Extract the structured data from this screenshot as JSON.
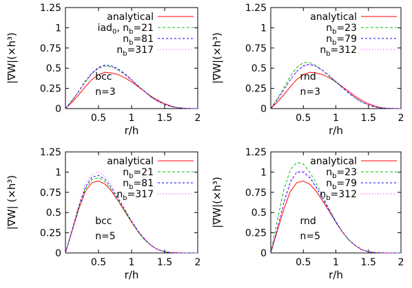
{
  "chart_data": [
    {
      "type": "line",
      "panel": "bcc-n3",
      "xlabel": "r/h",
      "ylabel": "|∇W|(×h³)",
      "xlim": [
        0,
        2
      ],
      "ylim": [
        0,
        1.25
      ],
      "xticks": [
        "0.5",
        "1",
        "1.5",
        "2"
      ],
      "yticks": [
        "0",
        "0.25",
        "0.5",
        "0.75",
        "1",
        "1.25"
      ],
      "annotation": [
        "bcc",
        "n=3"
      ],
      "legend_position": "top-right",
      "series": [
        {
          "name": "analytical",
          "base": "analytical",
          "sub": "",
          "rest": "",
          "color": "#ff0000",
          "dash": "none",
          "x": [
            0,
            0.1,
            0.2,
            0.3,
            0.4,
            0.5,
            0.6,
            0.7,
            0.8,
            0.9,
            1.0,
            1.1,
            1.2,
            1.3,
            1.4,
            1.5,
            1.6,
            1.7,
            1.8,
            1.9,
            2.0
          ],
          "values": [
            0,
            0.08,
            0.17,
            0.27,
            0.36,
            0.42,
            0.45,
            0.44,
            0.42,
            0.38,
            0.33,
            0.27,
            0.21,
            0.15,
            0.1,
            0.06,
            0.03,
            0.01,
            0.004,
            0.001,
            0
          ]
        },
        {
          "name": "iad0, nb=21",
          "base": "iad",
          "sub": "0",
          "rest": ", n",
          "sub2": "b",
          "rest2": "=21",
          "color": "#00c000",
          "dash": "4,3",
          "x": [
            0,
            0.1,
            0.2,
            0.3,
            0.4,
            0.5,
            0.6,
            0.7,
            0.8,
            0.9,
            1.0,
            1.1,
            1.2,
            1.3,
            1.4,
            1.5,
            1.6,
            1.7,
            1.8,
            1.9,
            2.0
          ],
          "values": [
            0,
            0.1,
            0.21,
            0.33,
            0.43,
            0.5,
            0.53,
            0.52,
            0.48,
            0.42,
            0.35,
            0.28,
            0.21,
            0.14,
            0.09,
            0.05,
            0.025,
            0.01,
            0.003,
            0.001,
            0
          ]
        },
        {
          "name": "nb=81",
          "base": "n",
          "sub": "b",
          "rest": "=81",
          "color": "#0000ff",
          "dash": "3,3",
          "x": [
            0,
            0.1,
            0.2,
            0.3,
            0.4,
            0.5,
            0.6,
            0.7,
            0.8,
            0.9,
            1.0,
            1.1,
            1.2,
            1.3,
            1.4,
            1.5,
            1.6,
            1.7,
            1.8,
            1.9,
            2.0
          ],
          "values": [
            0,
            0.1,
            0.21,
            0.34,
            0.44,
            0.51,
            0.54,
            0.53,
            0.49,
            0.43,
            0.36,
            0.28,
            0.21,
            0.14,
            0.09,
            0.05,
            0.025,
            0.01,
            0.003,
            0.001,
            0
          ]
        },
        {
          "name": "nb=317",
          "base": "n",
          "sub": "b",
          "rest": "=317",
          "color": "#ff00ff",
          "dash": "1,3",
          "x": [
            0,
            0.1,
            0.2,
            0.3,
            0.4,
            0.5,
            0.6,
            0.7,
            0.8,
            0.9,
            1.0,
            1.1,
            1.2,
            1.3,
            1.4,
            1.5,
            1.6,
            1.7,
            1.8,
            1.9,
            2.0
          ],
          "values": [
            0,
            0.1,
            0.21,
            0.33,
            0.43,
            0.5,
            0.52,
            0.51,
            0.47,
            0.42,
            0.35,
            0.28,
            0.21,
            0.14,
            0.09,
            0.05,
            0.025,
            0.01,
            0.003,
            0.001,
            0
          ]
        }
      ]
    },
    {
      "type": "line",
      "panel": "rnd-n3",
      "xlabel": "r/h",
      "ylabel": "|∇W|(×h³)",
      "xlim": [
        0,
        2
      ],
      "ylim": [
        0,
        1.25
      ],
      "xticks": [
        "0.5",
        "1",
        "1.5",
        "2"
      ],
      "yticks": [
        "0",
        "0.25",
        "0.5",
        "0.75",
        "1",
        "1.25"
      ],
      "annotation": [
        "rnd",
        "n=3"
      ],
      "legend_position": "top-right",
      "series": [
        {
          "name": "analytical",
          "base": "analytical",
          "sub": "",
          "rest": "",
          "color": "#ff0000",
          "dash": "none",
          "x": [
            0,
            0.1,
            0.2,
            0.3,
            0.4,
            0.5,
            0.6,
            0.7,
            0.8,
            0.9,
            1.0,
            1.1,
            1.2,
            1.3,
            1.4,
            1.5,
            1.6,
            1.7,
            1.8,
            1.9,
            2.0
          ],
          "values": [
            0,
            0.08,
            0.17,
            0.27,
            0.36,
            0.42,
            0.45,
            0.44,
            0.42,
            0.38,
            0.33,
            0.27,
            0.21,
            0.15,
            0.1,
            0.06,
            0.03,
            0.01,
            0.004,
            0.001,
            0
          ]
        },
        {
          "name": "nb=23",
          "base": "n",
          "sub": "b",
          "rest": "=23",
          "color": "#00c000",
          "dash": "4,3",
          "x": [
            0,
            0.1,
            0.2,
            0.3,
            0.4,
            0.5,
            0.6,
            0.7,
            0.8,
            0.9,
            1.0,
            1.1,
            1.2,
            1.3,
            1.4,
            1.5,
            1.6,
            1.7,
            1.8,
            1.9,
            2.0
          ],
          "values": [
            0,
            0.12,
            0.26,
            0.4,
            0.51,
            0.57,
            0.57,
            0.53,
            0.47,
            0.4,
            0.33,
            0.26,
            0.19,
            0.13,
            0.08,
            0.045,
            0.02,
            0.008,
            0.003,
            0.001,
            0
          ]
        },
        {
          "name": "nb=79",
          "base": "n",
          "sub": "b",
          "rest": "=79",
          "color": "#0000ff",
          "dash": "3,3",
          "x": [
            0,
            0.1,
            0.2,
            0.3,
            0.4,
            0.5,
            0.6,
            0.7,
            0.8,
            0.9,
            1.0,
            1.1,
            1.2,
            1.3,
            1.4,
            1.5,
            1.6,
            1.7,
            1.8,
            1.9,
            2.0
          ],
          "values": [
            0,
            0.11,
            0.23,
            0.36,
            0.46,
            0.53,
            0.55,
            0.52,
            0.47,
            0.4,
            0.33,
            0.26,
            0.19,
            0.13,
            0.08,
            0.045,
            0.02,
            0.008,
            0.003,
            0.001,
            0
          ]
        },
        {
          "name": "nb=312",
          "base": "n",
          "sub": "b",
          "rest": "=312",
          "color": "#ff00ff",
          "dash": "1,3",
          "x": [
            0,
            0.1,
            0.2,
            0.3,
            0.4,
            0.5,
            0.6,
            0.7,
            0.8,
            0.9,
            1.0,
            1.1,
            1.2,
            1.3,
            1.4,
            1.5,
            1.6,
            1.7,
            1.8,
            1.9,
            2.0
          ],
          "values": [
            0,
            0.11,
            0.23,
            0.36,
            0.46,
            0.52,
            0.54,
            0.52,
            0.47,
            0.41,
            0.34,
            0.27,
            0.2,
            0.13,
            0.08,
            0.045,
            0.02,
            0.008,
            0.003,
            0.001,
            0
          ]
        }
      ]
    },
    {
      "type": "line",
      "panel": "bcc-n5",
      "xlabel": "r/h",
      "ylabel": "|∇W| (×h³)",
      "xlim": [
        0,
        2
      ],
      "ylim": [
        0,
        1.25
      ],
      "xticks": [
        "0.5",
        "1",
        "1.5",
        "2"
      ],
      "yticks": [
        "0",
        "0.25",
        "0.5",
        "0.75",
        "1",
        "1.25"
      ],
      "annotation": [
        "bcc",
        "n=5"
      ],
      "legend_position": "top-right",
      "series": [
        {
          "name": "analytical",
          "base": "analytical",
          "sub": "",
          "rest": "",
          "color": "#ff0000",
          "dash": "none",
          "x": [
            0,
            0.1,
            0.2,
            0.3,
            0.4,
            0.5,
            0.6,
            0.7,
            0.8,
            0.9,
            1.0,
            1.1,
            1.2,
            1.3,
            1.4,
            1.5,
            1.6,
            1.7,
            1.8,
            1.9,
            2.0
          ],
          "values": [
            0,
            0.27,
            0.54,
            0.76,
            0.87,
            0.89,
            0.85,
            0.76,
            0.64,
            0.51,
            0.38,
            0.26,
            0.16,
            0.09,
            0.04,
            0.015,
            0.004,
            0.001,
            0,
            0,
            0
          ]
        },
        {
          "name": "nb=21",
          "base": "n",
          "sub": "b",
          "rest": "=21",
          "color": "#00c000",
          "dash": "4,3",
          "x": [
            0,
            0.1,
            0.2,
            0.3,
            0.4,
            0.5,
            0.6,
            0.7,
            0.8,
            0.9,
            1.0,
            1.1,
            1.2,
            1.3,
            1.4,
            1.5,
            1.6,
            1.7,
            1.8,
            1.9,
            2.0
          ],
          "values": [
            0,
            0.28,
            0.56,
            0.79,
            0.91,
            0.93,
            0.88,
            0.78,
            0.65,
            0.52,
            0.38,
            0.26,
            0.16,
            0.09,
            0.04,
            0.015,
            0.004,
            0.001,
            0,
            0,
            0
          ]
        },
        {
          "name": "nb=81",
          "base": "n",
          "sub": "b",
          "rest": "=81",
          "color": "#0000ff",
          "dash": "3,3",
          "x": [
            0,
            0.1,
            0.2,
            0.3,
            0.4,
            0.5,
            0.6,
            0.7,
            0.8,
            0.9,
            1.0,
            1.1,
            1.2,
            1.3,
            1.4,
            1.5,
            1.6,
            1.7,
            1.8,
            1.9,
            2.0
          ],
          "values": [
            0,
            0.28,
            0.57,
            0.81,
            0.94,
            0.96,
            0.91,
            0.8,
            0.67,
            0.53,
            0.39,
            0.27,
            0.17,
            0.09,
            0.04,
            0.015,
            0.004,
            0.001,
            0,
            0,
            0
          ]
        },
        {
          "name": "nb=317",
          "base": "n",
          "sub": "b",
          "rest": "=317",
          "color": "#ff00ff",
          "dash": "1,3",
          "x": [
            0,
            0.1,
            0.2,
            0.3,
            0.4,
            0.5,
            0.6,
            0.7,
            0.8,
            0.9,
            1.0,
            1.1,
            1.2,
            1.3,
            1.4,
            1.5,
            1.6,
            1.7,
            1.8,
            1.9,
            2.0
          ],
          "values": [
            0,
            0.29,
            0.59,
            0.84,
            0.98,
            1.0,
            0.95,
            0.83,
            0.69,
            0.54,
            0.4,
            0.27,
            0.17,
            0.09,
            0.04,
            0.015,
            0.004,
            0.001,
            0,
            0,
            0
          ]
        }
      ]
    },
    {
      "type": "line",
      "panel": "rnd-n5",
      "xlabel": "r/h",
      "ylabel": "|∇W|(×h³)",
      "xlim": [
        0,
        2
      ],
      "ylim": [
        0,
        1.25
      ],
      "xticks": [
        "0.5",
        "1",
        "1.5",
        "2"
      ],
      "yticks": [
        "0",
        "0.25",
        "0.5",
        "0.75",
        "1",
        "1.25"
      ],
      "annotation": [
        "rnd",
        "n=5"
      ],
      "legend_position": "top-right",
      "series": [
        {
          "name": "analytical",
          "base": "analytical",
          "sub": "",
          "rest": "",
          "color": "#ff0000",
          "dash": "none",
          "x": [
            0,
            0.1,
            0.2,
            0.3,
            0.4,
            0.5,
            0.6,
            0.7,
            0.8,
            0.9,
            1.0,
            1.1,
            1.2,
            1.3,
            1.4,
            1.5,
            1.6,
            1.7,
            1.8,
            1.9,
            2.0
          ],
          "values": [
            0,
            0.27,
            0.54,
            0.76,
            0.87,
            0.89,
            0.85,
            0.76,
            0.64,
            0.51,
            0.38,
            0.26,
            0.16,
            0.09,
            0.04,
            0.015,
            0.004,
            0.001,
            0,
            0,
            0
          ]
        },
        {
          "name": "nb=23",
          "base": "n",
          "sub": "b",
          "rest": "=23",
          "color": "#00c000",
          "dash": "4,3",
          "x": [
            0,
            0.1,
            0.2,
            0.3,
            0.4,
            0.5,
            0.6,
            0.7,
            0.8,
            0.9,
            1.0,
            1.1,
            1.2,
            1.3,
            1.4,
            1.5,
            1.6,
            1.7,
            1.8,
            1.9,
            2.0
          ],
          "values": [
            0,
            0.4,
            0.78,
            1.03,
            1.12,
            1.1,
            1.0,
            0.86,
            0.7,
            0.54,
            0.39,
            0.26,
            0.16,
            0.09,
            0.04,
            0.015,
            0.004,
            0.001,
            0,
            0,
            0
          ]
        },
        {
          "name": "nb=79",
          "base": "n",
          "sub": "b",
          "rest": "=79",
          "color": "#0000ff",
          "dash": "3,3",
          "x": [
            0,
            0.1,
            0.2,
            0.3,
            0.4,
            0.5,
            0.6,
            0.7,
            0.8,
            0.9,
            1.0,
            1.1,
            1.2,
            1.3,
            1.4,
            1.5,
            1.6,
            1.7,
            1.8,
            1.9,
            2.0
          ],
          "values": [
            0,
            0.3,
            0.62,
            0.88,
            1.0,
            1.0,
            0.93,
            0.81,
            0.67,
            0.52,
            0.38,
            0.26,
            0.16,
            0.09,
            0.04,
            0.015,
            0.004,
            0.001,
            0,
            0,
            0
          ]
        },
        {
          "name": "nb=312",
          "base": "n",
          "sub": "b",
          "rest": "=312",
          "color": "#ff00ff",
          "dash": "1,3",
          "x": [
            0,
            0.1,
            0.2,
            0.3,
            0.4,
            0.5,
            0.6,
            0.7,
            0.8,
            0.9,
            1.0,
            1.1,
            1.2,
            1.3,
            1.4,
            1.5,
            1.6,
            1.7,
            1.8,
            1.9,
            2.0
          ],
          "values": [
            0,
            0.3,
            0.61,
            0.87,
            1.0,
            1.02,
            0.95,
            0.82,
            0.68,
            0.53,
            0.39,
            0.26,
            0.16,
            0.09,
            0.04,
            0.015,
            0.004,
            0.001,
            0,
            0,
            0
          ]
        }
      ]
    }
  ]
}
